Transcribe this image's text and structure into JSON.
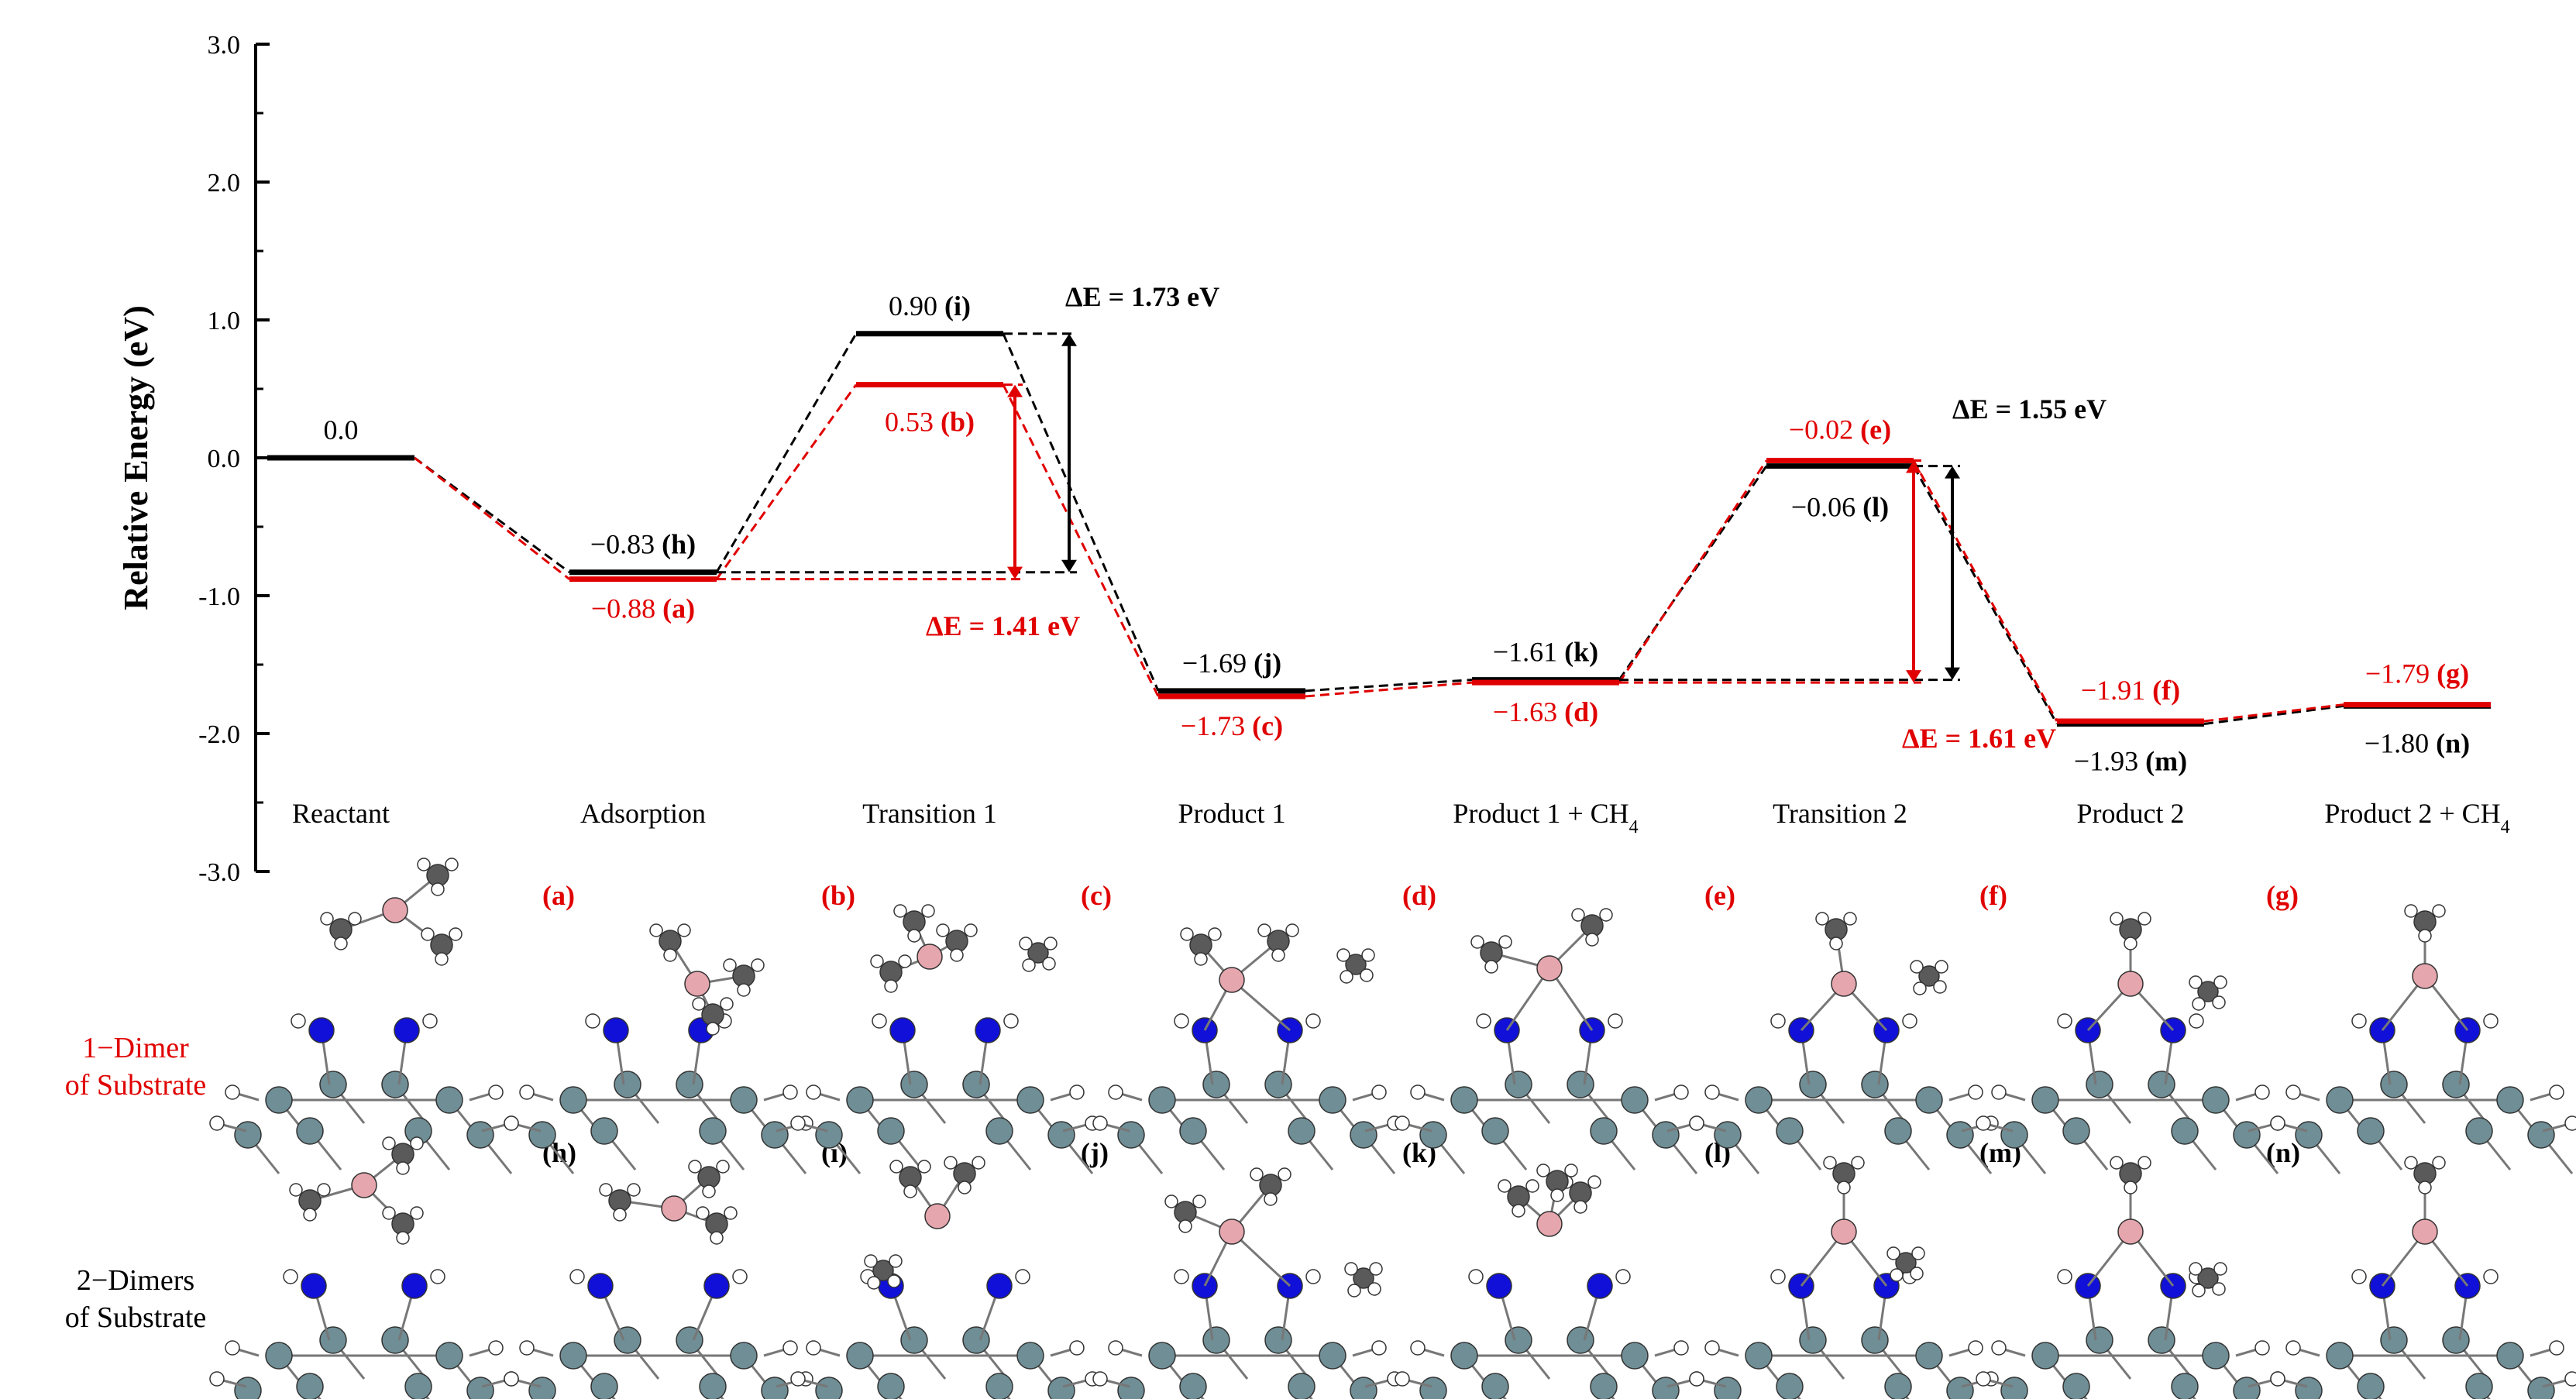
{
  "chart_data": {
    "type": "energy-profile",
    "ylabel": "Relative Energy (eV)",
    "ylim": [
      -3.0,
      3.0
    ],
    "yticks": [
      "3.0",
      "2.0",
      "1.0",
      "0.0",
      "-1.0",
      "-2.0",
      "-3.0"
    ],
    "categories": [
      "Reactant",
      "Adsorption",
      "Transition 1",
      "Product 1",
      "Product 1 + CH",
      "Transition 2",
      "Product 2",
      "Product 2 + CH"
    ],
    "category_subscripts": [
      "",
      "",
      "",
      "",
      "4",
      "",
      "",
      "4"
    ],
    "series": [
      {
        "color": "#000000",
        "levels": [
          {
            "cat": 0,
            "value": 0.0,
            "label": "0.0",
            "tag": ""
          },
          {
            "cat": 1,
            "value": -0.83,
            "label": "−0.83",
            "tag": "(h)"
          },
          {
            "cat": 2,
            "value": 0.9,
            "label": "0.90",
            "tag": "(i)"
          },
          {
            "cat": 3,
            "value": -1.69,
            "label": "−1.69",
            "tag": "(j)"
          },
          {
            "cat": 4,
            "value": -1.61,
            "label": "−1.61",
            "tag": "(k)"
          },
          {
            "cat": 5,
            "value": -0.06,
            "label": "−0.06",
            "tag": "(l)"
          },
          {
            "cat": 6,
            "value": -1.93,
            "label": "−1.93",
            "tag": "(m)"
          },
          {
            "cat": 7,
            "value": -1.8,
            "label": "−1.80",
            "tag": "(n)"
          }
        ]
      },
      {
        "color": "#e00000",
        "levels": [
          {
            "cat": 1,
            "value": -0.88,
            "label": "−0.88",
            "tag": "(a)"
          },
          {
            "cat": 2,
            "value": 0.53,
            "label": "0.53",
            "tag": "(b)"
          },
          {
            "cat": 3,
            "value": -1.73,
            "label": "−1.73",
            "tag": "(c)"
          },
          {
            "cat": 4,
            "value": -1.63,
            "label": "−1.63",
            "tag": "(d)"
          },
          {
            "cat": 5,
            "value": -0.02,
            "label": "−0.02",
            "tag": "(e)"
          },
          {
            "cat": 6,
            "value": -1.91,
            "label": "−1.91",
            "tag": "(f)"
          },
          {
            "cat": 7,
            "value": -1.79,
            "label": "−1.79",
            "tag": "(g)"
          }
        ]
      }
    ],
    "barriers": [
      {
        "label": "ΔE = 1.73 eV",
        "color": "#000000",
        "from": -0.83,
        "to": 0.9
      },
      {
        "label": "ΔE = 1.41 eV",
        "color": "#e00000",
        "from": -0.88,
        "to": 0.53
      },
      {
        "label": "ΔE = 1.55 eV",
        "color": "#000000",
        "from": -1.61,
        "to": -0.06
      },
      {
        "label": "ΔE = 1.61 eV",
        "color": "#e00000",
        "from": -1.63,
        "to": -0.02
      }
    ]
  },
  "structures": {
    "row_labels": [
      {
        "lines": [
          "1−Dimer",
          "of Substrate"
        ],
        "color": "#e00000"
      },
      {
        "lines": [
          "2−Dimers",
          "of Substrate"
        ],
        "color": "#000000"
      }
    ],
    "row1_tags": [
      "(a)",
      "(b)",
      "(c)",
      "(d)",
      "(e)",
      "(f)",
      "(g)"
    ],
    "row2_tags": [
      "(h)",
      "(i)",
      "(j)",
      "(k)",
      "(l)",
      "(m)",
      "(n)"
    ],
    "colors": {
      "carbon": "#5a5a5a",
      "hydrogen": "#ffffff",
      "boron": "#e6a6ae",
      "nitrogen": "#1010d8",
      "silicon": "#6f8e96"
    }
  }
}
